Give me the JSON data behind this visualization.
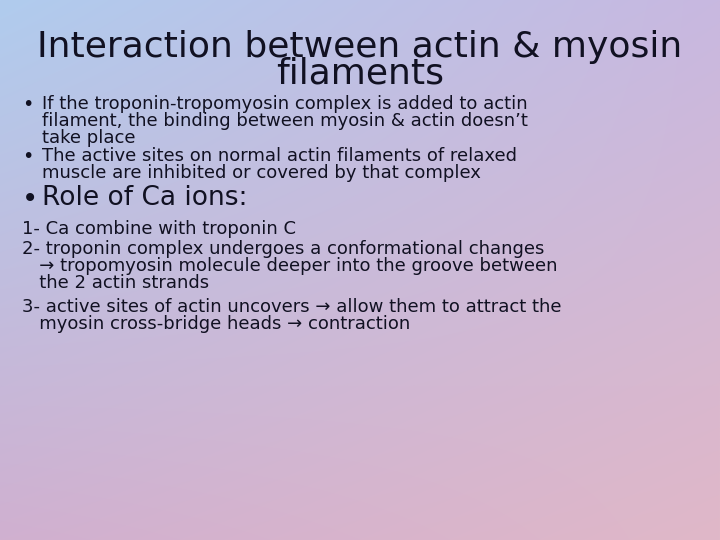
{
  "title_line1": "Interaction between actin & myosin",
  "title_line2": "filaments",
  "title_fontsize": 26,
  "title_color": "#1a1a2e",
  "body_fontsize": 13,
  "bullet_large_fontsize": 19,
  "text_color": "#111122",
  "bg_color_topleft": "#b0ccee",
  "bg_color_topright": "#c8b8e0",
  "bg_color_bottomleft": "#d0b0d0",
  "bg_color_bottomright": "#e0b8c8",
  "bullet1_line1": "If the troponin-tropomyosin complex is added to actin",
  "bullet1_line2": "filament, the binding between myosin & actin doesn’t",
  "bullet1_line3": "take place",
  "bullet2_line1": "The active sites on normal actin filaments of relaxed",
  "bullet2_line2": "muscle are inhibited or covered by that complex",
  "large_bullet": "Role of Ca ions:",
  "num1": "1- Ca combine with troponin C",
  "num2_line1": "2- troponin complex undergoes a conformational changes",
  "num2_line2": "   → tropomyosin molecule deeper into the groove between",
  "num2_line3": "   the 2 actin strands",
  "num3_line1": "3- active sites of actin uncovers → allow them to attract the",
  "num3_line2": "   myosin cross-bridge heads → contraction"
}
